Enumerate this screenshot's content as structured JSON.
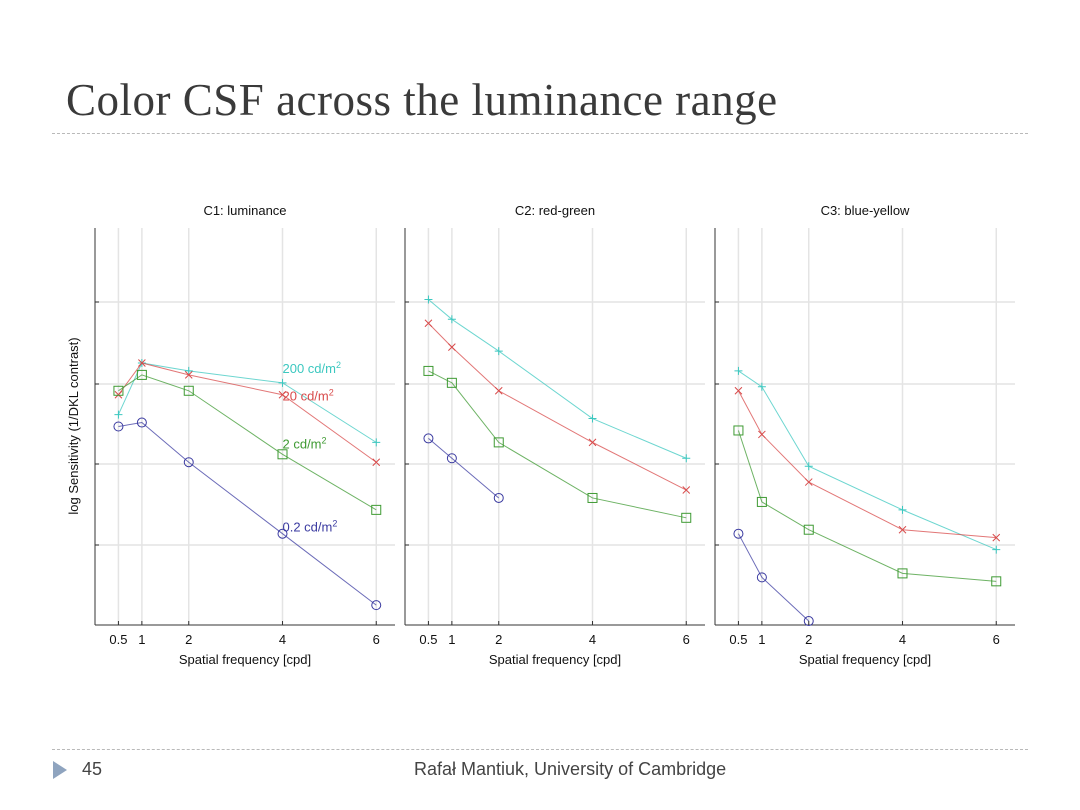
{
  "slide": {
    "title": "Color CSF across the luminance range",
    "page_number": "45",
    "footer": "Rafał Mantiuk, University of Cambridge"
  },
  "colors": {
    "200": "#3cc8c0",
    "20": "#d84a4a",
    "2": "#3e9a32",
    "0.2": "#3a3aa0",
    "grid": "#e4e4e4",
    "axis": "#333333",
    "text": "#111111"
  },
  "chart_data": [
    {
      "type": "line",
      "title": "C1: luminance",
      "xlabel": "Spatial frequency [cpd]",
      "ylabel": "log Sensitivity (1/DKL contrast)",
      "x_ticks": [
        "0.5",
        "1",
        "2",
        "4",
        "6"
      ],
      "xlim": [
        0,
        6.4
      ],
      "ylim": [
        0,
        5
      ],
      "series": [
        {
          "name": "200 cd/m²",
          "level": "200",
          "label": "200 cd/m",
          "x": [
            0.5,
            1,
            2,
            4,
            6
          ],
          "y": [
            2.65,
            3.3,
            3.2,
            3.05,
            2.3
          ]
        },
        {
          "name": "20 cd/m²",
          "level": "20",
          "label": "20 cd/m",
          "x": [
            0.5,
            1,
            2,
            4,
            6
          ],
          "y": [
            2.9,
            3.3,
            3.15,
            2.9,
            2.05
          ]
        },
        {
          "name": "2 cd/m²",
          "level": "2",
          "label": "2 cd/m",
          "x": [
            0.5,
            1,
            2,
            4,
            6
          ],
          "y": [
            2.95,
            3.15,
            2.95,
            2.15,
            1.45
          ]
        },
        {
          "name": "0.2 cd/m²",
          "level": "0.2",
          "label": "0.2 cd/m",
          "x": [
            0.5,
            1,
            2,
            4,
            6
          ],
          "y": [
            2.5,
            2.55,
            2.05,
            1.15,
            0.25
          ]
        }
      ]
    },
    {
      "type": "line",
      "title": "C2: red-green",
      "xlabel": "Spatial frequency [cpd]",
      "x_ticks": [
        "0.5",
        "1",
        "2",
        "4",
        "6"
      ],
      "xlim": [
        0,
        6.4
      ],
      "ylim": [
        0,
        5
      ],
      "series": [
        {
          "level": "200",
          "x": [
            0.5,
            1,
            2,
            4,
            6
          ],
          "y": [
            4.1,
            3.85,
            3.45,
            2.6,
            2.1
          ]
        },
        {
          "level": "20",
          "x": [
            0.5,
            1,
            2,
            4,
            6
          ],
          "y": [
            3.8,
            3.5,
            2.95,
            2.3,
            1.7
          ]
        },
        {
          "level": "2",
          "x": [
            0.5,
            1,
            2,
            4,
            6
          ],
          "y": [
            3.2,
            3.05,
            2.3,
            1.6,
            1.35
          ]
        },
        {
          "level": "0.2",
          "x": [
            0.5,
            1,
            2
          ],
          "y": [
            2.35,
            2.1,
            1.6
          ]
        }
      ]
    },
    {
      "type": "line",
      "title": "C3: blue-yellow",
      "xlabel": "Spatial frequency [cpd]",
      "x_ticks": [
        "0.5",
        "1",
        "2",
        "4",
        "6"
      ],
      "xlim": [
        0,
        6.4
      ],
      "ylim": [
        0,
        5
      ],
      "series": [
        {
          "level": "200",
          "x": [
            0.5,
            1,
            2,
            4,
            6
          ],
          "y": [
            3.2,
            3.0,
            2.0,
            1.45,
            0.95
          ]
        },
        {
          "level": "20",
          "x": [
            0.5,
            1,
            2,
            4,
            6
          ],
          "y": [
            2.95,
            2.4,
            1.8,
            1.2,
            1.1
          ]
        },
        {
          "level": "2",
          "x": [
            0.5,
            1,
            2,
            4,
            6
          ],
          "y": [
            2.45,
            1.55,
            1.2,
            0.65,
            0.55
          ]
        },
        {
          "level": "0.2",
          "x": [
            0.5,
            1,
            2
          ],
          "y": [
            1.15,
            0.6,
            0.05
          ]
        }
      ]
    }
  ]
}
